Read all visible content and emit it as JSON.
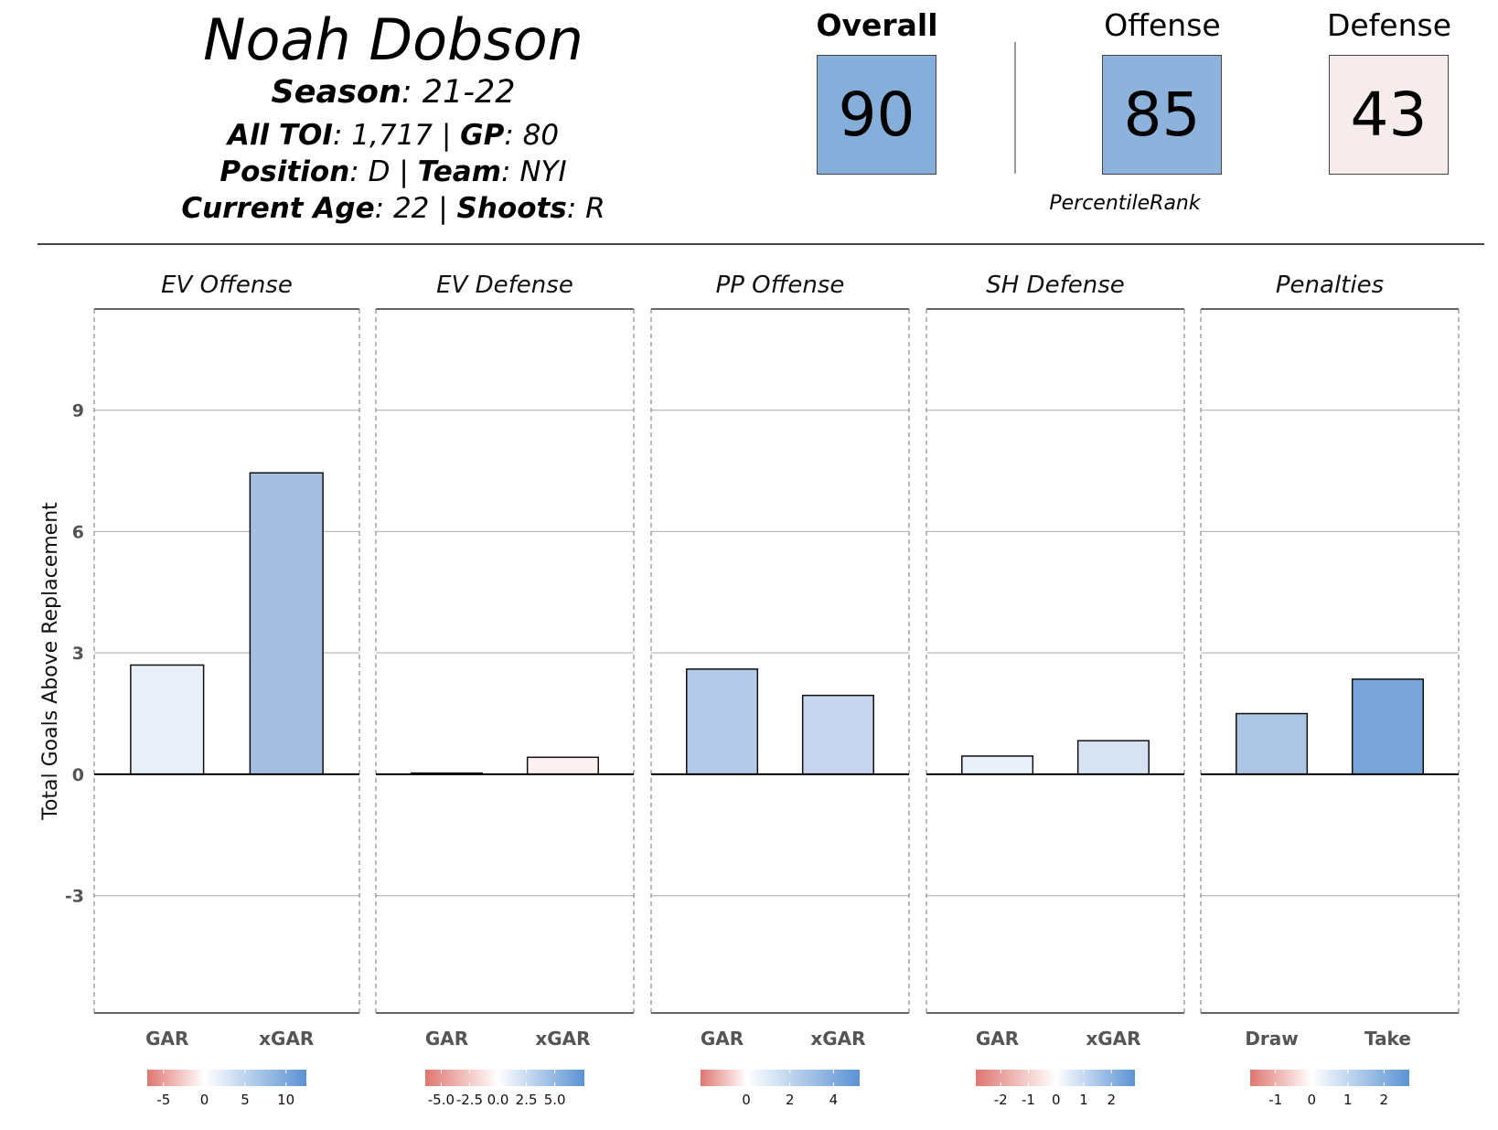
{
  "player": {
    "name": "Noah Dobson",
    "season_label": "Season",
    "season": "21-22",
    "toi_label": "All TOI",
    "toi": "1,717",
    "gp_label": "GP",
    "gp": "80",
    "position_label": "Position",
    "position": "D",
    "team_label": "Team",
    "team": "NYI",
    "age_label": "Current Age",
    "age": "22",
    "shoots_label": "Shoots",
    "shoots": "R"
  },
  "scores": [
    {
      "label": "Overall",
      "value": "90",
      "color": "#86aedb",
      "bold": true
    },
    {
      "label": "Offense",
      "value": "85",
      "color": "#8db3dd",
      "bold": false
    },
    {
      "label": "Defense",
      "value": "43",
      "color": "#f6ecec",
      "bold": false
    }
  ],
  "percentile_caption": "PercentileRank",
  "chart_data": {
    "type": "bar",
    "ylabel": "Total Goals Above Replacement",
    "ylim": [
      -5.9,
      11.5
    ],
    "yticks": [
      -3,
      0,
      3,
      6,
      9
    ],
    "ytick_labels": [
      "-3",
      "0",
      "3",
      "6",
      "9"
    ],
    "panels": [
      {
        "title": "EV Offense",
        "categories": [
          "GAR",
          "xGAR"
        ],
        "values": [
          2.7,
          7.45
        ],
        "colors": [
          "#e8eff9",
          "#a5bfe3"
        ],
        "scale": {
          "colors": [
            "#e07670",
            "#ffffff",
            "#5b93d4"
          ],
          "range": [
            -7,
            12.5
          ],
          "ticks": [
            -5,
            0,
            5,
            10
          ],
          "tick_labels": [
            "-5",
            "0",
            "5",
            "10"
          ]
        }
      },
      {
        "title": "EV Defense",
        "categories": [
          "GAR",
          "xGAR"
        ],
        "values": [
          0.03,
          0.42
        ],
        "colors": [
          "#fdf4f4",
          "#fcf2f1"
        ],
        "scale": {
          "colors": [
            "#e07670",
            "#ffffff",
            "#5b93d4"
          ],
          "range": [
            -6.4,
            7.6
          ],
          "ticks": [
            -5,
            -2.5,
            0,
            2.5,
            5
          ],
          "tick_labels": [
            "-5.0",
            "-2.5",
            "0.0",
            "2.5",
            "5.0"
          ]
        }
      },
      {
        "title": "PP Offense",
        "categories": [
          "GAR",
          "xGAR"
        ],
        "values": [
          2.6,
          1.95
        ],
        "colors": [
          "#b6cae9",
          "#c7d6ee"
        ],
        "scale": {
          "colors": [
            "#e07670",
            "#ffffff",
            "#5b93d4"
          ],
          "range": [
            -2.1,
            5.2
          ],
          "ticks": [
            0,
            2,
            4
          ],
          "tick_labels": [
            "0",
            "2",
            "4"
          ]
        }
      },
      {
        "title": "SH Defense",
        "categories": [
          "GAR",
          "xGAR"
        ],
        "values": [
          0.45,
          0.83
        ],
        "colors": [
          "#eaf0f9",
          "#d7e2f3"
        ],
        "scale": {
          "colors": [
            "#e07670",
            "#ffffff",
            "#5b93d4"
          ],
          "range": [
            -2.9,
            2.85
          ],
          "ticks": [
            -2,
            -1,
            0,
            1,
            2
          ],
          "tick_labels": [
            "-2",
            "-1",
            "0",
            "1",
            "2"
          ]
        }
      },
      {
        "title": "Penalties",
        "categories": [
          "Draw",
          "Take"
        ],
        "values": [
          1.5,
          2.35
        ],
        "colors": [
          "#aec6e6",
          "#7aa5d8"
        ],
        "scale": {
          "colors": [
            "#e07670",
            "#ffffff",
            "#5b93d4"
          ],
          "range": [
            -1.7,
            2.7
          ],
          "ticks": [
            -1,
            0,
            1,
            2
          ],
          "tick_labels": [
            "-1",
            "0",
            "1",
            "2"
          ]
        }
      }
    ]
  }
}
